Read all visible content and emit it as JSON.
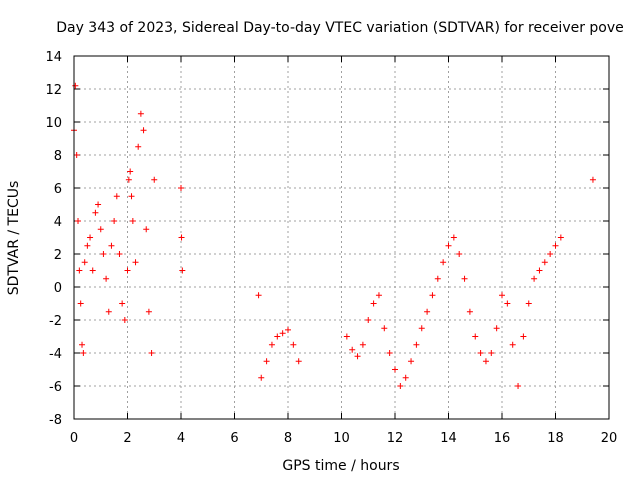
{
  "chart_data": {
    "type": "scatter",
    "title": "Day 343 of 2023, Sidereal Day-to-day VTEC variation (SDTVAR) for receiver pove",
    "xlabel": "GPS time / hours",
    "ylabel": "SDTVAR / TECUs",
    "xlim": [
      0,
      20
    ],
    "ylim": [
      -8,
      14
    ],
    "xticks": [
      "0",
      "2",
      "4",
      "6",
      "8",
      "10",
      "12",
      "14",
      "16",
      "18",
      "20"
    ],
    "yticks": [
      "-8",
      "-6",
      "-4",
      "-2",
      "0",
      "2",
      "4",
      "6",
      "8",
      "10",
      "12",
      "14"
    ],
    "grid": true,
    "marker": "+",
    "color": "#ff0000",
    "series": [
      {
        "name": "SDTVAR",
        "x": [
          0.0,
          0.05,
          0.1,
          0.15,
          0.2,
          0.25,
          0.3,
          0.35,
          0.4,
          0.5,
          0.6,
          0.7,
          0.8,
          0.9,
          1.0,
          1.1,
          1.2,
          1.3,
          1.4,
          1.5,
          1.6,
          1.7,
          1.8,
          1.9,
          2.0,
          2.05,
          2.1,
          2.15,
          2.2,
          2.3,
          2.4,
          2.5,
          2.6,
          2.7,
          2.8,
          2.9,
          3.0,
          4.0,
          4.02,
          4.05,
          6.9,
          7.0,
          7.2,
          7.4,
          7.6,
          7.8,
          8.0,
          8.2,
          8.4,
          10.2,
          10.4,
          10.6,
          10.8,
          11.0,
          11.2,
          11.4,
          11.6,
          11.8,
          12.0,
          12.2,
          12.4,
          12.6,
          12.8,
          13.0,
          13.2,
          13.4,
          13.6,
          13.8,
          14.0,
          14.2,
          14.4,
          14.6,
          14.8,
          15.0,
          15.2,
          15.4,
          15.6,
          15.8,
          16.0,
          16.2,
          16.4,
          16.6,
          16.8,
          17.0,
          17.2,
          17.4,
          17.6,
          17.8,
          18.0,
          18.2,
          19.4
        ],
        "y": [
          9.5,
          12.2,
          8.0,
          4.0,
          1.0,
          -1.0,
          -3.5,
          -4.0,
          1.5,
          2.5,
          3.0,
          1.0,
          4.5,
          5.0,
          3.5,
          2.0,
          0.5,
          -1.5,
          2.5,
          4.0,
          5.5,
          2.0,
          -1.0,
          -2.0,
          1.0,
          6.5,
          7.0,
          5.5,
          4.0,
          1.5,
          8.5,
          10.5,
          9.5,
          3.5,
          -1.5,
          -4.0,
          6.5,
          6.0,
          3.0,
          1.0,
          -0.5,
          -5.5,
          -4.5,
          -3.5,
          -3.0,
          -2.8,
          -2.6,
          -3.5,
          -4.5,
          -3.0,
          -3.8,
          -4.2,
          -3.5,
          -2.0,
          -1.0,
          -0.5,
          -2.5,
          -4.0,
          -5.0,
          -6.0,
          -5.5,
          -4.5,
          -3.5,
          -2.5,
          -1.5,
          -0.5,
          0.5,
          1.5,
          2.5,
          3.0,
          2.0,
          0.5,
          -1.5,
          -3.0,
          -4.0,
          -4.5,
          -4.0,
          -2.5,
          -0.5,
          -1.0,
          -3.5,
          -6.0,
          -3.0,
          -1.0,
          0.5,
          1.0,
          1.5,
          2.0,
          2.5,
          3.0,
          6.5
        ]
      }
    ]
  }
}
